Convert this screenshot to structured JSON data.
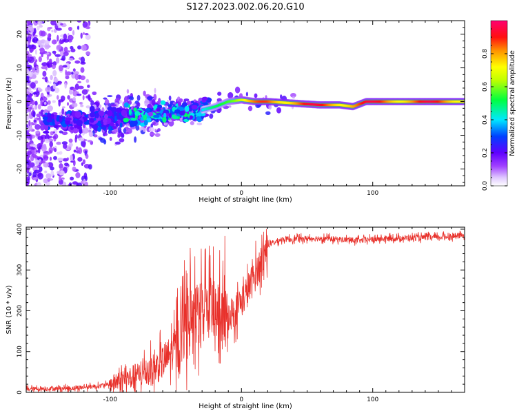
{
  "figure": {
    "title": "S127.2023.002.06.20.G10"
  },
  "chart_data": [
    {
      "type": "heatmap",
      "name": "spectrogram",
      "xlabel": "Height of straight line (km)",
      "ylabel": "Frequency (Hz)",
      "xlim": [
        -164,
        170
      ],
      "ylim": [
        -25,
        24
      ],
      "xticks": [
        -100,
        0,
        100
      ],
      "yticks": [
        -20,
        -10,
        0,
        10,
        20
      ],
      "colorbar": {
        "label": "Normalized spectral amplitude",
        "range": [
          0,
          1
        ],
        "ticks": [
          0.0,
          0.2,
          0.4,
          0.6,
          0.8
        ]
      },
      "ridge": {
        "x": [
          -165,
          -140,
          -120,
          -100,
          -80,
          -60,
          -40,
          -30,
          -20,
          -10,
          0,
          10,
          20,
          40,
          60,
          75,
          85,
          95,
          100,
          120,
          140,
          170
        ],
        "y": [
          -7,
          -6,
          -5.5,
          -5,
          -4,
          -3.5,
          -3,
          -2.5,
          -1.5,
          0,
          0.5,
          0,
          0,
          -0.5,
          -1,
          -1,
          -1.5,
          0,
          0,
          0,
          0,
          0
        ]
      }
    },
    {
      "type": "line",
      "name": "snr",
      "xlabel": "Height of straight line (km)",
      "ylabel": "SNR (10 * v/v)",
      "xlim": [
        -164,
        170
      ],
      "ylim": [
        0,
        405
      ],
      "xticks": [
        -100,
        0,
        100
      ],
      "yticks": [
        0,
        100,
        200,
        300,
        400
      ],
      "color": "#e8302a",
      "trend": {
        "x": [
          -164,
          -130,
          -110,
          -100,
          -80,
          -65,
          -55,
          -45,
          -35,
          -25,
          -15,
          -5,
          5,
          12,
          20,
          30,
          60,
          90,
          100,
          120,
          150,
          170
        ],
        "y": [
          8,
          10,
          15,
          20,
          40,
          60,
          90,
          140,
          190,
          210,
          180,
          200,
          250,
          300,
          360,
          375,
          378,
          372,
          375,
          378,
          380,
          385
        ]
      }
    }
  ]
}
